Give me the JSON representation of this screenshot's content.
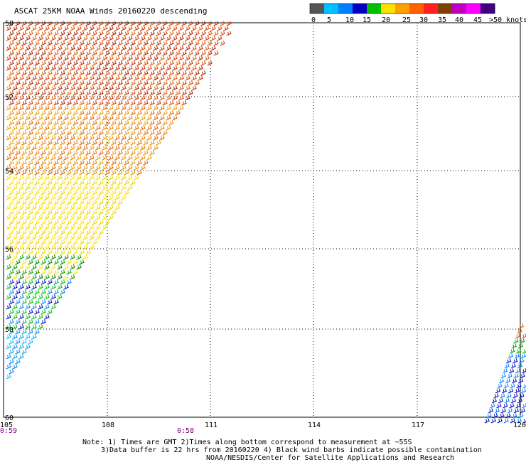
{
  "title": "ASCAT 25KM NOAA Winds 20160220 descending",
  "scale": {
    "colors": [
      "#555555",
      "#00c0ff",
      "#0080ff",
      "#0000c0",
      "#00c000",
      "#ffe000",
      "#ffa000",
      "#ff6000",
      "#ff2020",
      "#804000",
      "#c000c0",
      "#ff00ff",
      "#400080"
    ],
    "labels": [
      "0",
      "5",
      "10",
      "15",
      "20",
      "25",
      "30",
      "35",
      "40",
      "45",
      ">50 knots"
    ]
  },
  "axes": {
    "lat_labels": [
      "50",
      "52",
      "54",
      "56",
      "58",
      "60"
    ],
    "lon_labels": [
      "105",
      "108",
      "111",
      "114",
      "117",
      "120"
    ],
    "time_labels": [
      "0:59",
      "0:58"
    ]
  },
  "notes": {
    "line1": "Note: 1) Times are GMT 2)Times along bottom correspond to measurement at ~55S",
    "line2": "3)Data buffer is 22 hrs from 20160220 4) Black wind barbs indicate possible contamination",
    "line3": "NOAA/NESDIS/Center for Satellite Applications and Research"
  }
}
